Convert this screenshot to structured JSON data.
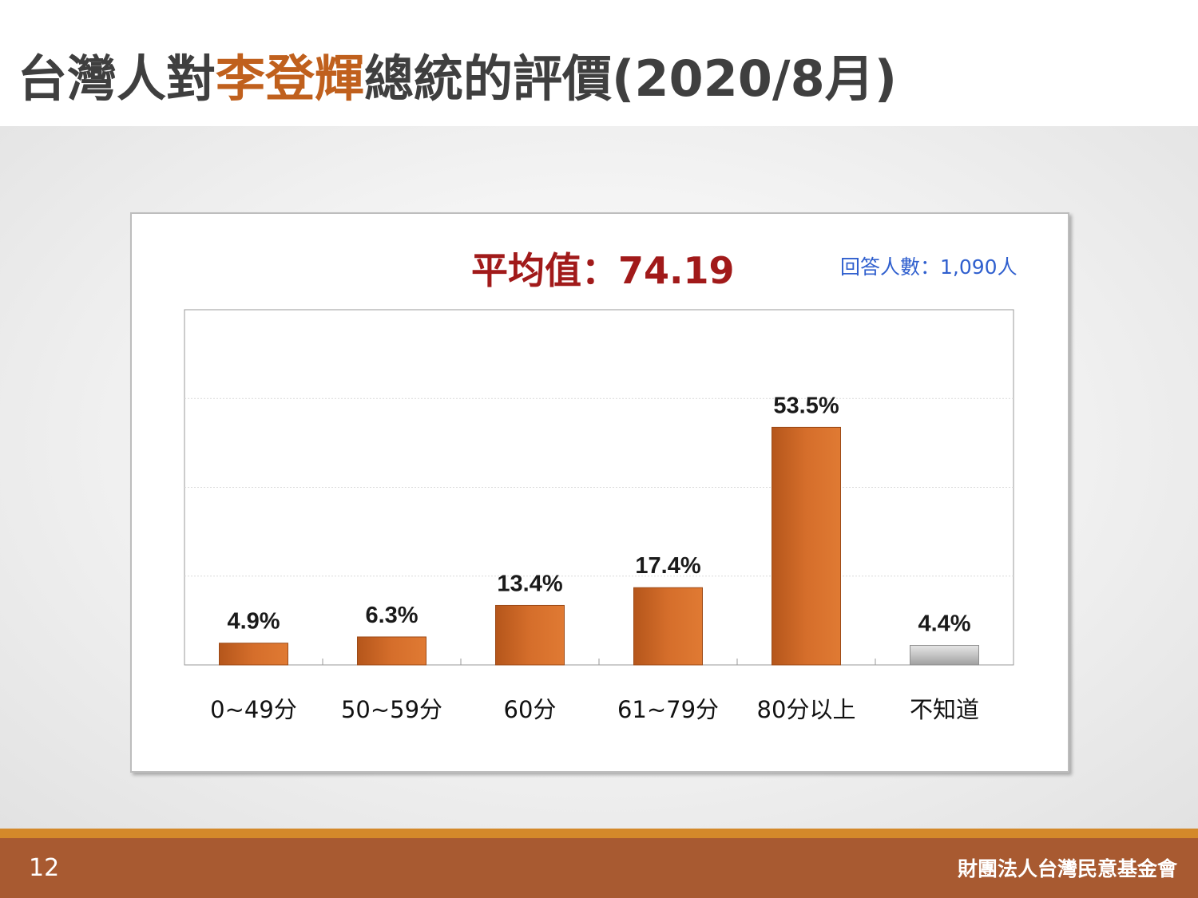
{
  "slide": {
    "title_prefix": "台灣人對",
    "title_highlight": "李登輝",
    "title_suffix": "總統的評價(2020/8月)",
    "average_text": "平均值：74.19",
    "respondents_text": "回答人數：1,090人",
    "page_number": "12",
    "organization": "財團法人台灣民意基金會"
  },
  "colors": {
    "accent": "#c0601d",
    "bar": "#cf6a28",
    "bar_unknown": "#b8b8b8",
    "average": "#a11a1a",
    "respondents": "#2f5fce",
    "footer": "#a85a31",
    "footer_stripe": "#d4892a"
  },
  "chart_data": {
    "type": "bar",
    "categories": [
      "0~49分",
      "50~59分",
      "60分",
      "61~79分",
      "80分以上",
      "不知道"
    ],
    "values": [
      4.9,
      6.3,
      13.4,
      17.4,
      53.5,
      4.4
    ],
    "value_labels": [
      "4.9%",
      "6.3%",
      "13.4%",
      "17.4%",
      "53.5%",
      "4.4%"
    ],
    "unit": "%",
    "ylim": [
      0,
      80
    ],
    "grid": true,
    "gridline_step": 20,
    "legend": "none"
  }
}
